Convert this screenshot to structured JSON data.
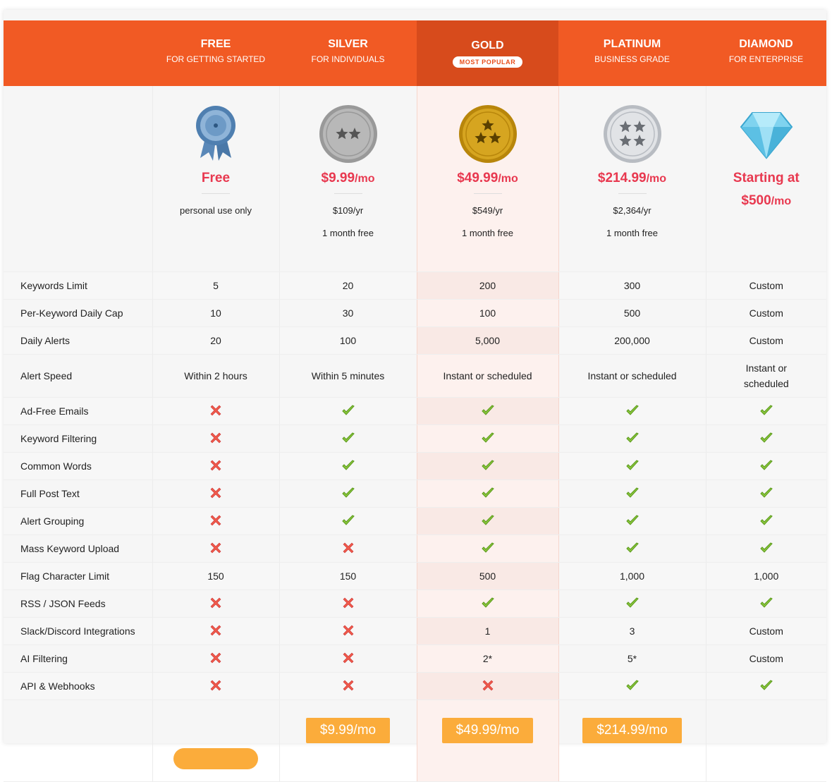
{
  "plans": [
    {
      "name": "FREE",
      "subtitle": "FOR GETTING STARTED",
      "price": "Free",
      "notes": [
        "personal use only"
      ]
    },
    {
      "name": "SILVER",
      "subtitle": "FOR INDIVIDUALS",
      "price": "$9.99",
      "unit": "/mo",
      "notes": [
        "$109/yr",
        "1 month free"
      ],
      "button": "$9.99/mo"
    },
    {
      "name": "GOLD",
      "badge": "MOST POPULAR",
      "price": "$49.99",
      "unit": "/mo",
      "notes": [
        "$549/yr",
        "1 month free"
      ],
      "button": "$49.99/mo"
    },
    {
      "name": "PLATINUM",
      "subtitle": "BUSINESS GRADE",
      "price": "$214.99",
      "unit": "/mo",
      "notes": [
        "$2,364/yr",
        "1 month free"
      ],
      "button": "$214.99/mo"
    },
    {
      "name": "DIAMOND",
      "subtitle": "FOR ENTERPRISE",
      "prefix": "Starting at",
      "price": "$500",
      "unit": "/mo",
      "notes": []
    }
  ],
  "features": [
    {
      "label": "Keywords Limit",
      "values": [
        "5",
        "20",
        "200",
        "300",
        "Custom"
      ]
    },
    {
      "label": "Per-Keyword Daily Cap",
      "values": [
        "10",
        "30",
        "100",
        "500",
        "Custom"
      ]
    },
    {
      "label": "Daily Alerts",
      "values": [
        "20",
        "100",
        "5,000",
        "200,000",
        "Custom"
      ]
    },
    {
      "label": "Alert Speed",
      "values": [
        "Within 2 hours",
        "Within 5 minutes",
        "Instant or scheduled",
        "Instant or scheduled",
        "Instant or scheduled"
      ]
    },
    {
      "label": "Ad-Free Emails",
      "values": [
        false,
        true,
        true,
        true,
        true
      ]
    },
    {
      "label": "Keyword Filtering",
      "values": [
        false,
        true,
        true,
        true,
        true
      ]
    },
    {
      "label": "Common Words",
      "values": [
        false,
        true,
        true,
        true,
        true
      ]
    },
    {
      "label": "Full Post Text",
      "values": [
        false,
        true,
        true,
        true,
        true
      ]
    },
    {
      "label": "Alert Grouping",
      "values": [
        false,
        true,
        true,
        true,
        true
      ]
    },
    {
      "label": "Mass Keyword Upload",
      "values": [
        false,
        false,
        true,
        true,
        true
      ]
    },
    {
      "label": "Flag Character Limit",
      "values": [
        "150",
        "150",
        "500",
        "1,000",
        "1,000"
      ]
    },
    {
      "label": "RSS / JSON Feeds",
      "values": [
        false,
        false,
        true,
        true,
        true
      ]
    },
    {
      "label": "Slack/Discord Integrations",
      "values": [
        false,
        false,
        "1",
        "3",
        "Custom"
      ]
    },
    {
      "label": "AI Filtering",
      "values": [
        false,
        false,
        "2*",
        "5*",
        "Custom"
      ]
    },
    {
      "label": "API & Webhooks",
      "values": [
        false,
        false,
        false,
        true,
        true
      ]
    }
  ]
}
